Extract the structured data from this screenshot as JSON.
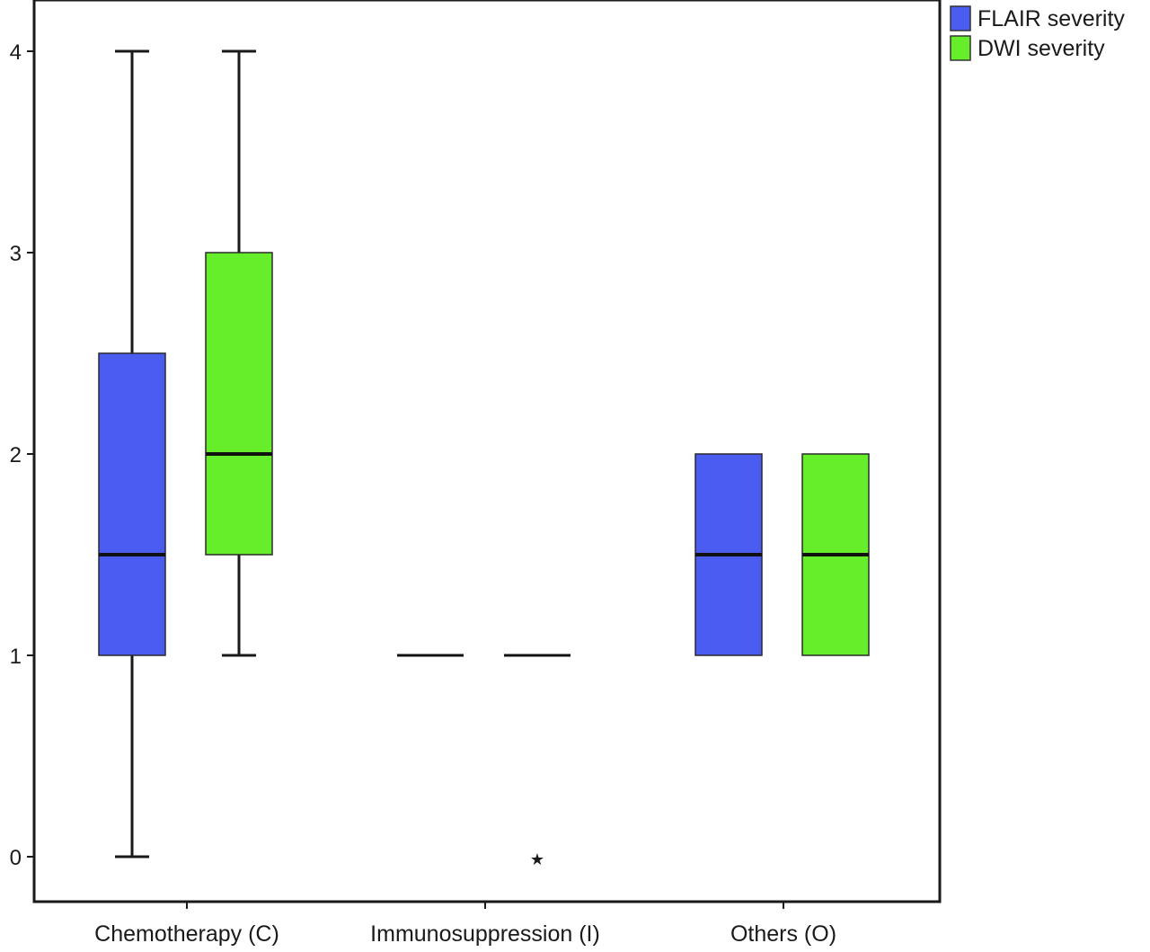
{
  "chart_data": {
    "type": "boxplot",
    "title": "",
    "xlabel": "",
    "ylabel": "",
    "ylim": [
      -0.25,
      4.45
    ],
    "yticks": [
      0,
      1,
      2,
      3,
      4
    ],
    "ytick_labels": [
      "0",
      "1",
      "2",
      "3",
      "4"
    ],
    "grid": false,
    "legend_position": "top-right",
    "categories": [
      "Chemotherapy (C)",
      "Immunosuppression (I)",
      "Others (O)"
    ],
    "series": [
      {
        "name": "FLAIR severity",
        "color": "#4a5df0",
        "boxes": [
          {
            "whisker_low": 0,
            "q1": 1,
            "median": 1.5,
            "q3": 2.5,
            "whisker_high": 4,
            "outliers": []
          },
          {
            "whisker_low": 1,
            "q1": 1,
            "median": 1,
            "q3": 1,
            "whisker_high": 1,
            "outliers": []
          },
          {
            "whisker_low": 1,
            "q1": 1,
            "median": 1.5,
            "q3": 2,
            "whisker_high": 2,
            "outliers": []
          }
        ]
      },
      {
        "name": "DWI severity",
        "color": "#66ee2a",
        "boxes": [
          {
            "whisker_low": 1,
            "q1": 1.5,
            "median": 2,
            "q3": 3,
            "whisker_high": 4,
            "outliers": []
          },
          {
            "whisker_low": 1,
            "q1": 1,
            "median": 1,
            "q3": 1,
            "whisker_high": 1,
            "outliers": [
              0
            ]
          },
          {
            "whisker_low": 1,
            "q1": 1,
            "median": 1.5,
            "q3": 2,
            "whisker_high": 2,
            "outliers": []
          }
        ]
      }
    ]
  }
}
